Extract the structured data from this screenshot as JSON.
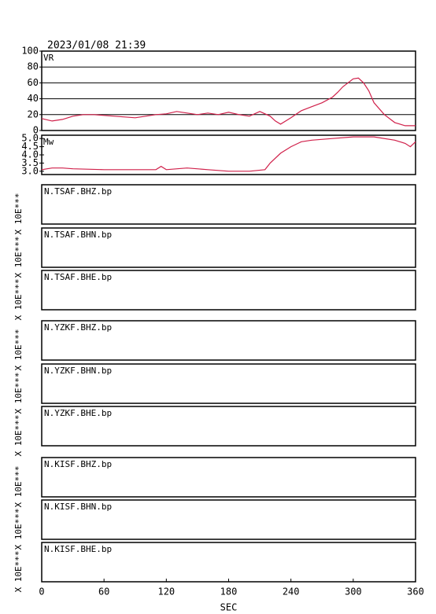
{
  "title": "2023/01/08 21:39",
  "chart_data": [
    {
      "type": "line",
      "label": "VR",
      "xlim": [
        0,
        360
      ],
      "ylim": [
        0,
        100
      ],
      "yticks": [
        0,
        20,
        40,
        60,
        80,
        100
      ],
      "grid": true,
      "series": [
        {
          "color": "#d0204a",
          "x": [
            0,
            10,
            20,
            30,
            40,
            50,
            60,
            70,
            80,
            90,
            100,
            110,
            120,
            130,
            140,
            150,
            160,
            170,
            180,
            190,
            200,
            210,
            220,
            225,
            230,
            240,
            250,
            260,
            270,
            280,
            285,
            290,
            300,
            305,
            310,
            315,
            320,
            330,
            340,
            350,
            360
          ],
          "values": [
            15,
            12,
            14,
            18,
            20,
            20,
            19,
            18,
            17,
            16,
            18,
            20,
            21,
            24,
            22,
            20,
            22,
            20,
            23,
            20,
            18,
            24,
            18,
            12,
            8,
            16,
            25,
            30,
            35,
            42,
            48,
            55,
            65,
            66,
            60,
            50,
            35,
            20,
            10,
            6,
            6
          ]
        }
      ]
    },
    {
      "type": "line",
      "label": "Mw",
      "xlim": [
        0,
        360
      ],
      "ylim": [
        2.8,
        5.2
      ],
      "yticks": [
        {
          "value": 3,
          "label": "3.0"
        },
        3.5,
        {
          "value": 4,
          "label": "4.0"
        },
        4.5,
        {
          "value": 5,
          "label": "5.0"
        }
      ],
      "grid": false,
      "series": [
        {
          "color": "#d0204a",
          "x": [
            0,
            10,
            20,
            30,
            60,
            90,
            110,
            115,
            120,
            140,
            160,
            180,
            200,
            215,
            220,
            230,
            240,
            250,
            260,
            280,
            300,
            320,
            340,
            350,
            355,
            360
          ],
          "values": [
            3.1,
            3.2,
            3.2,
            3.15,
            3.1,
            3.1,
            3.1,
            3.3,
            3.1,
            3.2,
            3.1,
            3.0,
            3.0,
            3.1,
            3.5,
            4.1,
            4.5,
            4.8,
            4.9,
            5.0,
            5.1,
            5.1,
            4.9,
            4.7,
            4.5,
            4.8
          ]
        }
      ]
    },
    {
      "type": "trace",
      "title": "N.TSAF.BHZ.bp",
      "ylabel": "X 10E***",
      "xlim": [
        0,
        360
      ]
    },
    {
      "type": "trace",
      "title": "N.TSAF.BHN.bp",
      "ylabel": "X 10E***",
      "xlim": [
        0,
        360
      ]
    },
    {
      "type": "trace",
      "title": "N.TSAF.BHE.bp",
      "ylabel": "X 10E***",
      "xlim": [
        0,
        360
      ]
    },
    {
      "type": "trace",
      "title": "N.YZKF.BHZ.bp",
      "ylabel": "X 10E***",
      "xlim": [
        0,
        360
      ]
    },
    {
      "type": "trace",
      "title": "N.YZKF.BHN.bp",
      "ylabel": "X 10E***",
      "xlim": [
        0,
        360
      ]
    },
    {
      "type": "trace",
      "title": "N.YZKF.BHE.bp",
      "ylabel": "X 10E***",
      "xlim": [
        0,
        360
      ]
    },
    {
      "type": "trace",
      "title": "N.KISF.BHZ.bp",
      "ylabel": "X 10E***",
      "xlim": [
        0,
        360
      ]
    },
    {
      "type": "trace",
      "title": "N.KISF.BHN.bp",
      "ylabel": "X 10E***",
      "xlim": [
        0,
        360
      ]
    },
    {
      "type": "trace",
      "title": "N.KISF.BHE.bp",
      "ylabel": "X 10E***",
      "xlim": [
        0,
        360
      ],
      "xticks": [
        0,
        60,
        120,
        180,
        240,
        300,
        360
      ],
      "xlabel": "SEC"
    }
  ]
}
